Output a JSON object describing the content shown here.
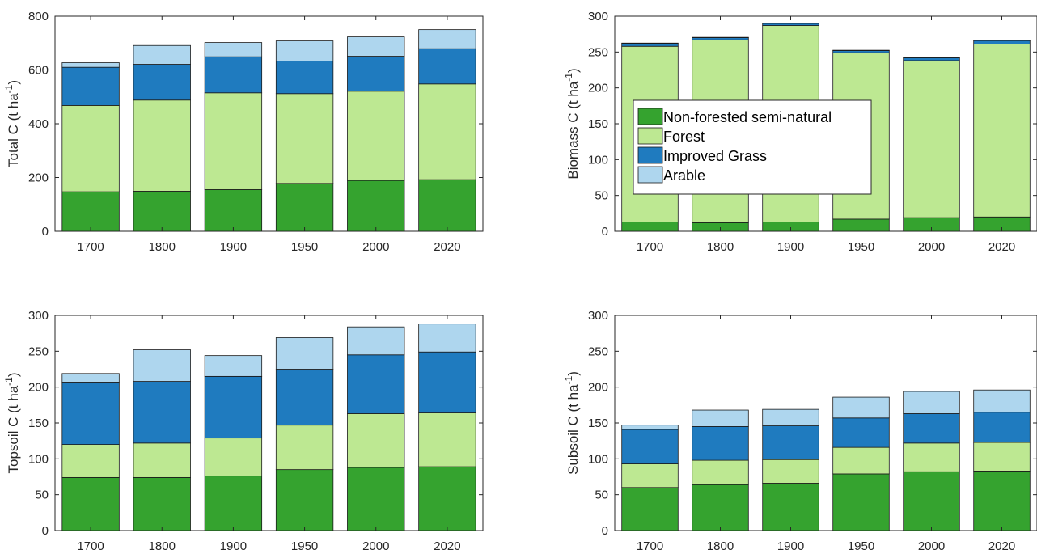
{
  "legend": {
    "entries": [
      {
        "label": "Non-forested semi-natural",
        "color": "#35a32f"
      },
      {
        "label": "Forest",
        "color": "#bde892"
      },
      {
        "label": "Improved Grass",
        "color": "#1f7bbf"
      },
      {
        "label": "Arable",
        "color": "#aed6ee"
      }
    ]
  },
  "chart_data": [
    {
      "type": "bar",
      "stacked": true,
      "categories": [
        "1700",
        "1800",
        "1900",
        "1950",
        "2000",
        "2020"
      ],
      "ylabel": "Total C (t ha",
      "ylabel_sup": "-1",
      "ylabel_tail": ")",
      "ylim": [
        0,
        800
      ],
      "yticks": [
        0,
        200,
        400,
        600,
        800
      ],
      "grid": false,
      "legend": false,
      "series": [
        {
          "name": "Non-forested semi-natural",
          "values": [
            147,
            149,
            155,
            178,
            189,
            192
          ]
        },
        {
          "name": "Forest",
          "values": [
            321,
            339,
            360,
            334,
            332,
            356
          ]
        },
        {
          "name": "Improved Grass",
          "values": [
            142,
            133,
            134,
            121,
            130,
            131
          ]
        },
        {
          "name": "Arable",
          "values": [
            17,
            70,
            53,
            75,
            72,
            71
          ]
        }
      ]
    },
    {
      "type": "bar",
      "stacked": true,
      "categories": [
        "1700",
        "1800",
        "1900",
        "1950",
        "2000",
        "2020"
      ],
      "ylabel": "Biomass C (t ha",
      "ylabel_sup": "-1",
      "ylabel_tail": ")",
      "ylim": [
        0,
        300
      ],
      "yticks": [
        0,
        50,
        100,
        150,
        200,
        250,
        300
      ],
      "grid": false,
      "legend": true,
      "legend_position": "center-left",
      "series": [
        {
          "name": "Non-forested semi-natural",
          "values": [
            13,
            12,
            13,
            17,
            19,
            20
          ]
        },
        {
          "name": "Forest",
          "values": [
            245,
            255,
            274,
            232,
            219,
            241
          ]
        },
        {
          "name": "Improved Grass",
          "values": [
            4,
            3,
            3,
            3,
            4,
            5
          ]
        },
        {
          "name": "Arable",
          "values": [
            0.5,
            0.5,
            0.5,
            0.5,
            0.5,
            0.5
          ]
        }
      ]
    },
    {
      "type": "bar",
      "stacked": true,
      "categories": [
        "1700",
        "1800",
        "1900",
        "1950",
        "2000",
        "2020"
      ],
      "ylabel": "Topsoil C (t ha",
      "ylabel_sup": "-1",
      "ylabel_tail": ")",
      "ylim": [
        0,
        300
      ],
      "yticks": [
        0,
        50,
        100,
        150,
        200,
        250,
        300
      ],
      "grid": false,
      "legend": false,
      "series": [
        {
          "name": "Non-forested semi-natural",
          "values": [
            74,
            74,
            76,
            85,
            88,
            89
          ]
        },
        {
          "name": "Forest",
          "values": [
            46,
            48,
            53,
            62,
            75,
            75
          ]
        },
        {
          "name": "Improved Grass",
          "values": [
            87,
            86,
            86,
            78,
            82,
            85
          ]
        },
        {
          "name": "Arable",
          "values": [
            12,
            44,
            29,
            44,
            39,
            39
          ]
        }
      ]
    },
    {
      "type": "bar",
      "stacked": true,
      "categories": [
        "1700",
        "1800",
        "1900",
        "1950",
        "2000",
        "2020"
      ],
      "ylabel": "Subsoil C (t ha",
      "ylabel_sup": "-1",
      "ylabel_tail": ")",
      "ylim": [
        0,
        300
      ],
      "yticks": [
        0,
        50,
        100,
        150,
        200,
        250,
        300
      ],
      "grid": false,
      "legend": false,
      "series": [
        {
          "name": "Non-forested semi-natural",
          "values": [
            60,
            64,
            66,
            79,
            82,
            83
          ]
        },
        {
          "name": "Forest",
          "values": [
            33,
            34,
            33,
            37,
            40,
            40
          ]
        },
        {
          "name": "Improved Grass",
          "values": [
            48,
            47,
            47,
            41,
            41,
            42
          ]
        },
        {
          "name": "Arable",
          "values": [
            6,
            23,
            23,
            29,
            31,
            31
          ]
        }
      ]
    }
  ]
}
